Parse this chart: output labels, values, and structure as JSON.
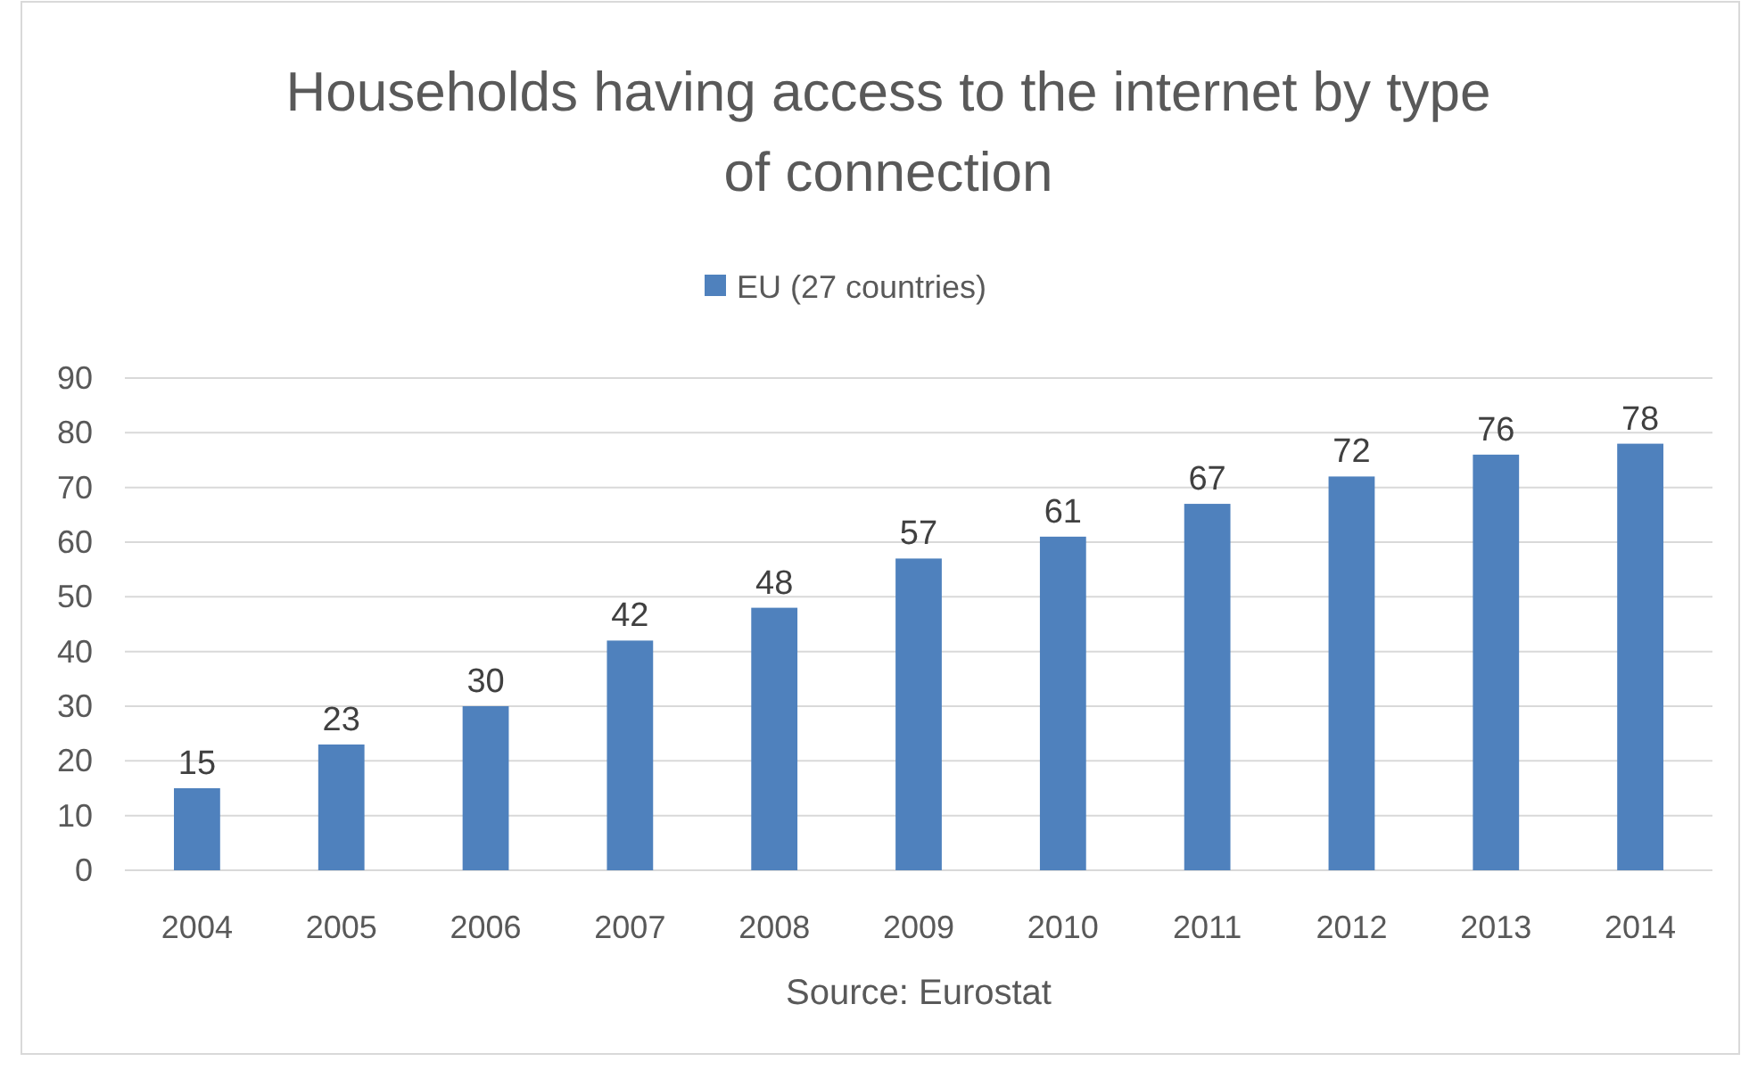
{
  "chart_data": {
    "type": "bar",
    "title": "Households having access to the internet by type of connection",
    "categories": [
      "2004",
      "2005",
      "2006",
      "2007",
      "2008",
      "2009",
      "2010",
      "2011",
      "2012",
      "2013",
      "2014"
    ],
    "series": [
      {
        "name": "EU (27 countries)",
        "color": "#4f81bd",
        "values": [
          15,
          23,
          30,
          42,
          48,
          57,
          61,
          67,
          72,
          76,
          78
        ]
      }
    ],
    "ylim": [
      0,
      90
    ],
    "yticks": [
      0,
      10,
      20,
      30,
      40,
      50,
      60,
      70,
      80,
      90
    ],
    "grid": "y",
    "legend": "top",
    "data_labels": true,
    "annotations": [
      "Source: Eurostat"
    ]
  }
}
